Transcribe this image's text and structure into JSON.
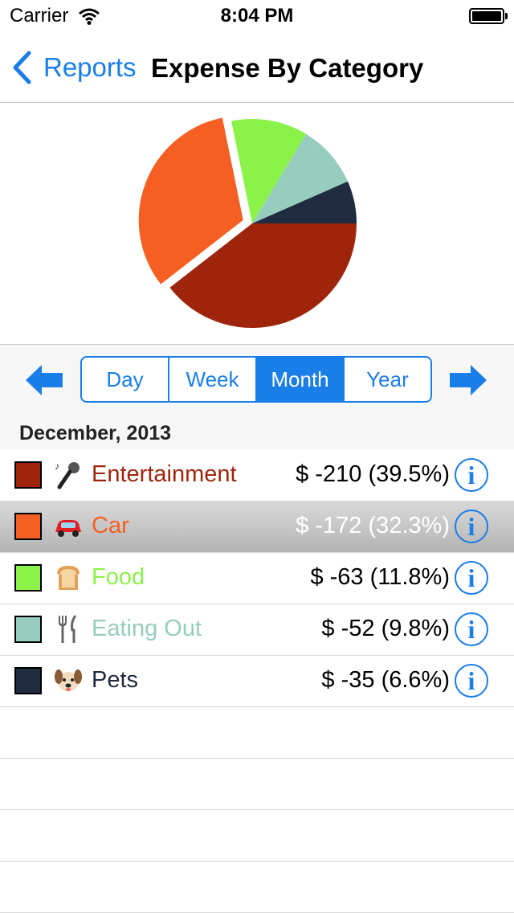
{
  "status_bar": {
    "carrier": "Carrier",
    "time": "8:04 PM"
  },
  "nav": {
    "back_label": "Reports",
    "title": "Expense By Category"
  },
  "periods": [
    "Day",
    "Week",
    "Month",
    "Year"
  ],
  "active_period": "Month",
  "section_header": "December, 2013",
  "chart_data": {
    "type": "pie",
    "labels": [
      "Entertainment",
      "Car",
      "Food",
      "Eating Out",
      "Pets"
    ],
    "values": [
      210,
      172,
      63,
      52,
      35
    ],
    "percents": [
      39.5,
      32.3,
      11.8,
      9.8,
      6.6
    ],
    "colors": [
      "#9e250c",
      "#f55f23",
      "#8bf24a",
      "#97cdbe",
      "#1f2b3e"
    ],
    "exploded": "Car"
  },
  "categories": [
    {
      "name": "Entertainment",
      "amount": "$ -210 (39.5%)",
      "color": "#9e250c",
      "icon": "microphone-icon"
    },
    {
      "name": "Car",
      "amount": "$ -172 (32.3%)",
      "color": "#f55f23",
      "icon": "car-icon",
      "selected": true
    },
    {
      "name": "Food",
      "amount": "$ -63 (11.8%)",
      "color": "#8bf24a",
      "icon": "bread-icon"
    },
    {
      "name": "Eating Out",
      "amount": "$ -52 (9.8%)",
      "color": "#97cdbe",
      "icon": "fork-knife-icon"
    },
    {
      "name": "Pets",
      "amount": "$ -35 (6.6%)",
      "color": "#1f2b3e",
      "icon": "dog-icon"
    }
  ],
  "info_glyph": "i"
}
